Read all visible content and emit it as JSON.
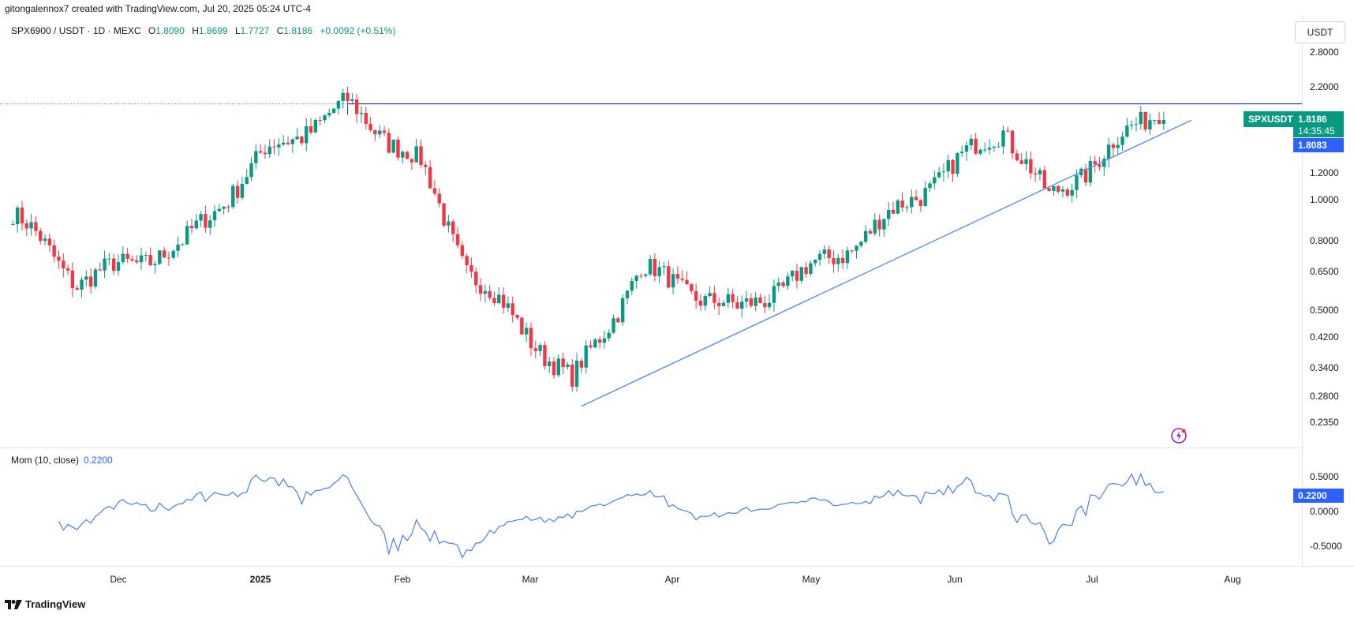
{
  "header": {
    "attribution": "gitongalennox7 created with TradingView.com, Jul 20, 2025 05:24 UTC-4"
  },
  "legend": {
    "symbol": "SPX6900 / USDT · 1D · MEXC",
    "o_label": "O",
    "o_value": "1.8090",
    "h_label": "H",
    "h_value": "1.8699",
    "l_label": "L",
    "l_value": "1.7727",
    "c_label": "C",
    "c_value": "1.8186",
    "change": "+0.0092 (+0.51%)"
  },
  "currency_button": "USDT",
  "price_axis": {
    "ticks": [
      "2.8000",
      "2.2000",
      "1.2000",
      "1.0000",
      "0.8000",
      "0.6500",
      "0.5000",
      "0.4200",
      "0.3400",
      "0.2800",
      "0.2350"
    ]
  },
  "price_tags": {
    "symbol": "SPXUSDT",
    "last_price": "1.8186",
    "countdown": "14:35:45",
    "line_price": "1.8083"
  },
  "momentum": {
    "label": "Mom (10, close)",
    "value": "0.2200",
    "ticks": [
      "0.5000",
      "0.0000",
      "-0.5000"
    ]
  },
  "time_axis": {
    "ticks": [
      "Dec",
      "2025",
      "Feb",
      "Mar",
      "Apr",
      "May",
      "Jun",
      "Jul",
      "Aug"
    ]
  },
  "branding": {
    "logo_text": "TradingView"
  },
  "colors": {
    "up": "#089981",
    "down": "#f23645",
    "line": "#2962ff",
    "trend": "#5b8def",
    "mom_line": "#4a7cf0"
  },
  "chart_data": [
    {
      "type": "candlestick",
      "title": "SPX6900 / USDT · 1D · MEXC",
      "scale": "log",
      "ylim": [
        0.235,
        2.8
      ],
      "x_range": [
        "2024-11-08",
        "2025-08-05"
      ],
      "horizontal_line": 1.8083,
      "trendline": {
        "from": [
          "2025-03-12",
          0.238
        ],
        "to": [
          "2025-07-23",
          1.62
        ]
      },
      "key_points": [
        {
          "x": "2024-11-08",
          "y": 0.87
        },
        {
          "x": "2024-11-22",
          "y": 0.55
        },
        {
          "x": "2024-12-15",
          "y": 0.7
        },
        {
          "x": "2025-01-02",
          "y": 1.3
        },
        {
          "x": "2025-01-20",
          "y": 1.8
        },
        {
          "x": "2025-02-05",
          "y": 1.2
        },
        {
          "x": "2025-02-15",
          "y": 0.6
        },
        {
          "x": "2025-03-10",
          "y": 0.28
        },
        {
          "x": "2025-03-25",
          "y": 0.6
        },
        {
          "x": "2025-04-15",
          "y": 0.45
        },
        {
          "x": "2025-05-10",
          "y": 0.7
        },
        {
          "x": "2025-06-12",
          "y": 1.55
        },
        {
          "x": "2025-06-22",
          "y": 0.95
        },
        {
          "x": "2025-07-17",
          "y": 1.82
        }
      ]
    },
    {
      "type": "line",
      "title": "Mom (10, close)",
      "ylim": [
        -0.75,
        0.75
      ],
      "last_value": 0.22
    }
  ]
}
